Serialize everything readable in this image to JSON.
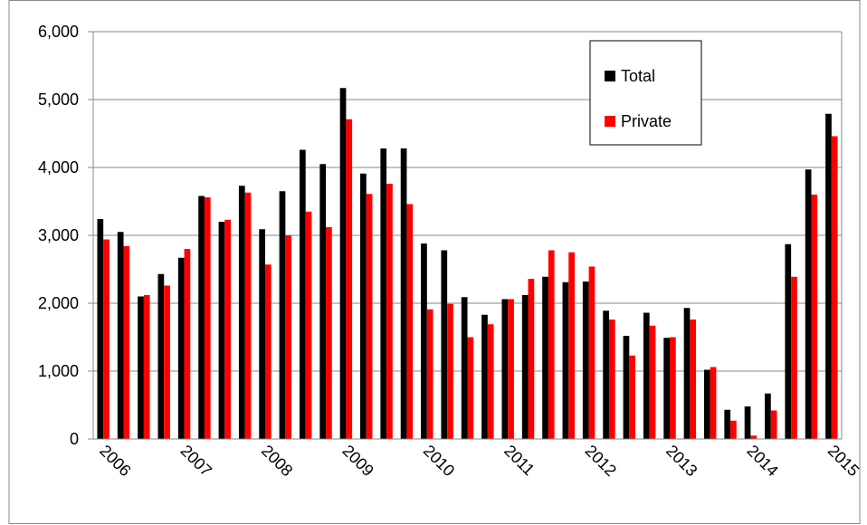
{
  "chart_data": {
    "type": "bar",
    "categories": [
      "2006",
      null,
      null,
      null,
      "2007",
      null,
      null,
      null,
      "2008",
      null,
      null,
      null,
      "2009",
      null,
      null,
      null,
      "2010",
      null,
      null,
      null,
      "2011",
      null,
      null,
      null,
      "2012",
      null,
      null,
      null,
      "2013",
      null,
      null,
      null,
      "2014",
      null,
      null,
      null,
      "2015"
    ],
    "series": [
      {
        "name": "Total",
        "color": "#000000",
        "values": [
          3240,
          3050,
          2100,
          2430,
          2670,
          3580,
          3200,
          3730,
          3090,
          3650,
          4260,
          4050,
          5170,
          3910,
          4280,
          4280,
          2880,
          2780,
          2090,
          1830,
          2060,
          2120,
          2390,
          2310,
          2320,
          1890,
          1520,
          1860,
          1490,
          1930,
          1020,
          430,
          480,
          670,
          2870,
          3970,
          4790
        ]
      },
      {
        "name": "Private",
        "color": "#ff0000",
        "values": [
          2940,
          2840,
          2120,
          2260,
          2800,
          3560,
          3230,
          3630,
          2570,
          3000,
          3350,
          3120,
          4710,
          3610,
          3760,
          3460,
          1910,
          1990,
          1500,
          1690,
          2060,
          2360,
          2780,
          2750,
          2540,
          1760,
          1230,
          1670,
          1500,
          1760,
          1060,
          270,
          50,
          420,
          2390,
          3600,
          4460
        ]
      }
    ],
    "ylim": [
      0,
      6000
    ],
    "yticks": [
      0,
      {
        "value": 1000,
        "label": "1,000"
      },
      {
        "value": 2000,
        "label": "2,000"
      },
      {
        "value": 3000,
        "label": "3,000"
      },
      {
        "value": 4000,
        "label": "4,000"
      },
      {
        "value": 5000,
        "label": "5,000"
      },
      {
        "value": 6000,
        "label": "6,000"
      }
    ],
    "grid": true,
    "legend": "top-right"
  }
}
